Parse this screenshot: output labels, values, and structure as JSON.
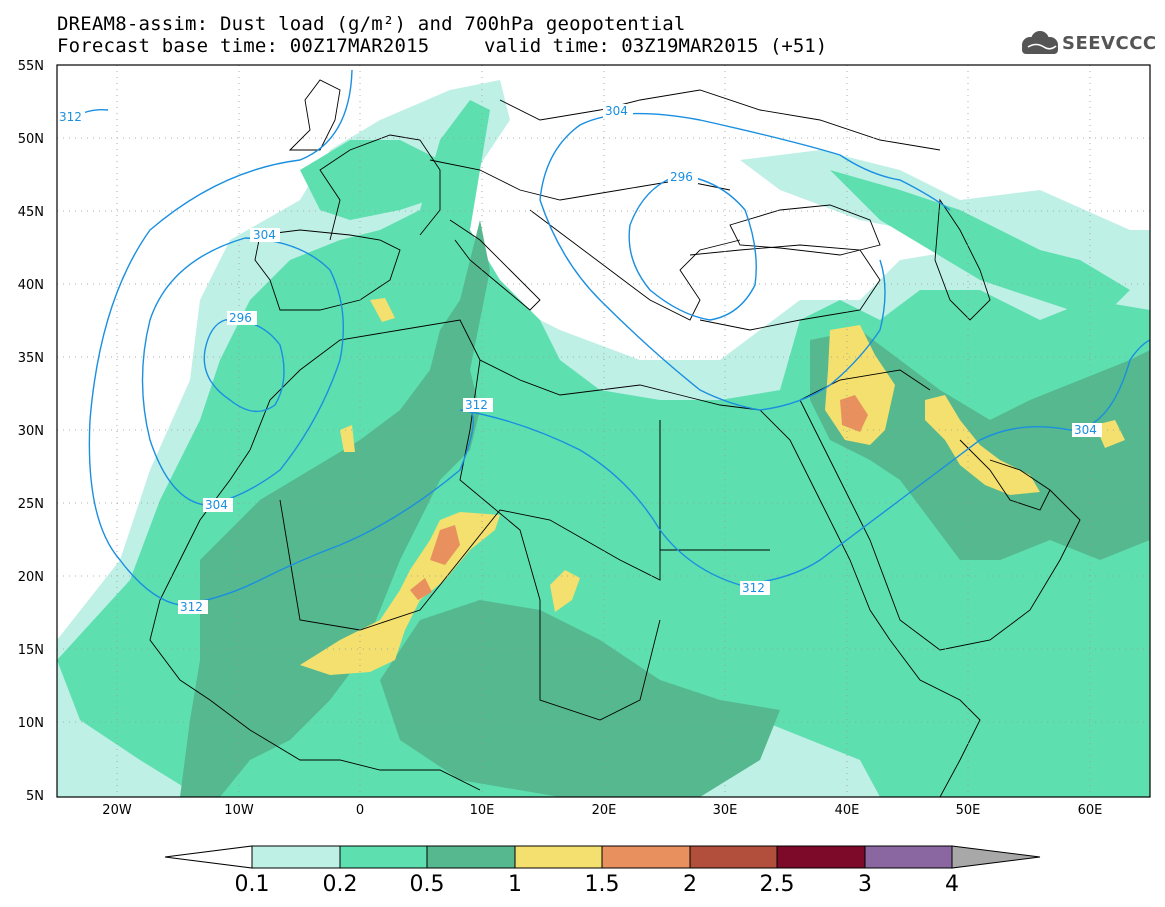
{
  "title": {
    "line1": "DREAM8-assim: Dust load (g/m²) and 700hPa geopotential",
    "base_time": "Forecast base time: 00Z17MAR2015",
    "valid_time": "valid time: 03Z19MAR2015 (+51)"
  },
  "logo": {
    "text": "SEEVCCC",
    "icon": "cloud-icon"
  },
  "axes": {
    "lat_labels": [
      "55N",
      "50N",
      "45N",
      "40N",
      "35N",
      "30N",
      "25N",
      "20N",
      "15N",
      "10N",
      "5N"
    ],
    "lon_labels": [
      "20W",
      "10W",
      "0",
      "10E",
      "20E",
      "30E",
      "40E",
      "50E",
      "60E"
    ]
  },
  "contours": [
    {
      "label": "312"
    },
    {
      "label": "304"
    },
    {
      "label": "296"
    },
    {
      "label": "296"
    },
    {
      "label": "304"
    },
    {
      "label": "304"
    },
    {
      "label": "312"
    },
    {
      "label": "312"
    },
    {
      "label": "312"
    },
    {
      "label": "304"
    }
  ],
  "colorbar": {
    "labels": [
      "0.1",
      "0.2",
      "0.5",
      "1",
      "1.5",
      "2",
      "2.5",
      "3",
      "4"
    ],
    "colors": [
      "#bff0e6",
      "#5edfb0",
      "#55b88e",
      "#f3e06e",
      "#e9905f",
      "#b24e3c",
      "#7e0a2a",
      "#8a67a0"
    ]
  },
  "colors": {
    "contour": "#1a8fe0",
    "land_line": "#000000"
  }
}
